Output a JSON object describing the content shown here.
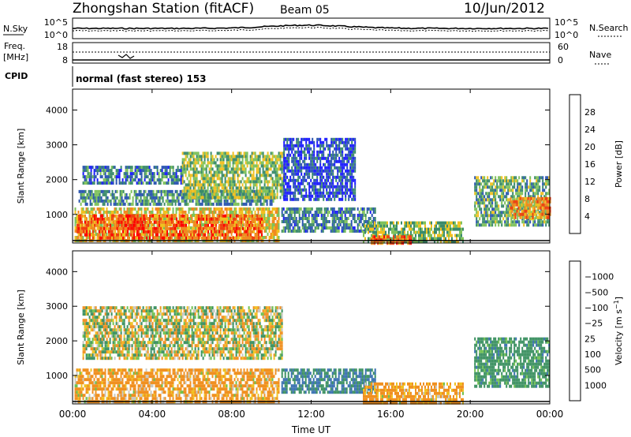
{
  "header": {
    "station": "Zhongshan Station (fitACF)",
    "beam": "Beam 05",
    "date": "10/Jun/2012"
  },
  "strips": {
    "nsky_label": "N.Sky",
    "nsky_ticks": [
      "10^5",
      "10^0"
    ],
    "nsearch_label": "N.Search",
    "nsearch_ticks": [
      "10^5",
      "10^0"
    ],
    "freq_label_line1": "Freq.",
    "freq_label_line2": "[MHz]",
    "freq_ticks": [
      "18",
      "8"
    ],
    "nave_label": "Nave",
    "nave_ticks": [
      "60",
      "0"
    ],
    "cpid_label": "CPID",
    "cpid_text": "normal (fast stereo) 153"
  },
  "chart_data": [
    {
      "type": "heatmap",
      "name": "power",
      "xlabel": "",
      "ylabel": "Slant Range [km]",
      "x_ticks": [
        "00:00",
        "04:00",
        "08:00",
        "12:00",
        "16:00",
        "20:00",
        "00:00"
      ],
      "y_ticks": [
        1000,
        2000,
        3000,
        4000
      ],
      "ylim": [
        180,
        4600
      ],
      "xlim_hours": [
        0,
        24
      ],
      "colorbar": {
        "title": "Power [dB]",
        "ticks": [
          4,
          8,
          12,
          16,
          20,
          24,
          28
        ],
        "colors": [
          "#1a1aff",
          "#2a55b0",
          "#3a8a6a",
          "#7ec15a",
          "#f0c020",
          "#f08a20",
          "#f04010",
          "#ff0000"
        ]
      },
      "blobs": [
        {
          "t0": 0.1,
          "t1": 10.4,
          "r0": 250,
          "r1": 1200,
          "v": 18
        },
        {
          "t0": 0.2,
          "t1": 9.5,
          "r0": 350,
          "r1": 1000,
          "v": 24
        },
        {
          "t0": 2.2,
          "t1": 3.6,
          "r0": 600,
          "r1": 1000,
          "v": 27
        },
        {
          "t0": 0.3,
          "t1": 10.2,
          "r0": 1300,
          "r1": 1700,
          "v": 10
        },
        {
          "t0": 0.5,
          "t1": 5.5,
          "r0": 1900,
          "r1": 2400,
          "v": 8
        },
        {
          "t0": 5.5,
          "t1": 10.6,
          "r0": 1500,
          "r1": 2800,
          "v": 14
        },
        {
          "t0": 10.5,
          "t1": 15.2,
          "r0": 500,
          "r1": 1200,
          "v": 9
        },
        {
          "t0": 10.6,
          "t1": 14.2,
          "r0": 1400,
          "r1": 3200,
          "v": 5
        },
        {
          "t0": 14.6,
          "t1": 19.6,
          "r0": 250,
          "r1": 800,
          "v": 14
        },
        {
          "t0": 15.0,
          "t1": 17.0,
          "r0": 200,
          "r1": 400,
          "v": 24
        },
        {
          "t0": 20.2,
          "t1": 24.0,
          "r0": 700,
          "r1": 2100,
          "v": 12
        },
        {
          "t0": 22.0,
          "t1": 24.0,
          "r0": 900,
          "r1": 1500,
          "v": 21
        }
      ]
    },
    {
      "type": "heatmap",
      "name": "velocity",
      "xlabel": "Time UT",
      "ylabel": "Slant Range [km]",
      "x_ticks": [
        "00:00",
        "04:00",
        "08:00",
        "12:00",
        "16:00",
        "20:00",
        "00:00"
      ],
      "y_ticks": [
        1000,
        2000,
        3000,
        4000
      ],
      "ylim": [
        180,
        4600
      ],
      "xlim_hours": [
        0,
        24
      ],
      "colorbar": {
        "title": "Velocity [m s^-1]",
        "ticks": [
          1000,
          500,
          100,
          25,
          -25,
          -100,
          -500,
          -1000
        ],
        "colors": [
          "#1a30c0",
          "#3870b0",
          "#3a9060",
          "#70c050",
          "#c8c8c0",
          "#f0c020",
          "#f09020",
          "#f05010",
          "#ff0000"
        ]
      },
      "blobs": [
        {
          "t0": 0.1,
          "t1": 10.4,
          "r0": 250,
          "r1": 1200,
          "v": -200
        },
        {
          "t0": 0.5,
          "t1": 10.5,
          "r0": 1500,
          "r1": 3000,
          "v": 0
        },
        {
          "t0": 10.5,
          "t1": 15.2,
          "r0": 500,
          "r1": 1200,
          "v": 500
        },
        {
          "t0": 14.6,
          "t1": 19.6,
          "r0": 250,
          "r1": 800,
          "v": -200
        },
        {
          "t0": 20.2,
          "t1": 24.0,
          "r0": 700,
          "r1": 2100,
          "v": 300
        }
      ]
    }
  ]
}
